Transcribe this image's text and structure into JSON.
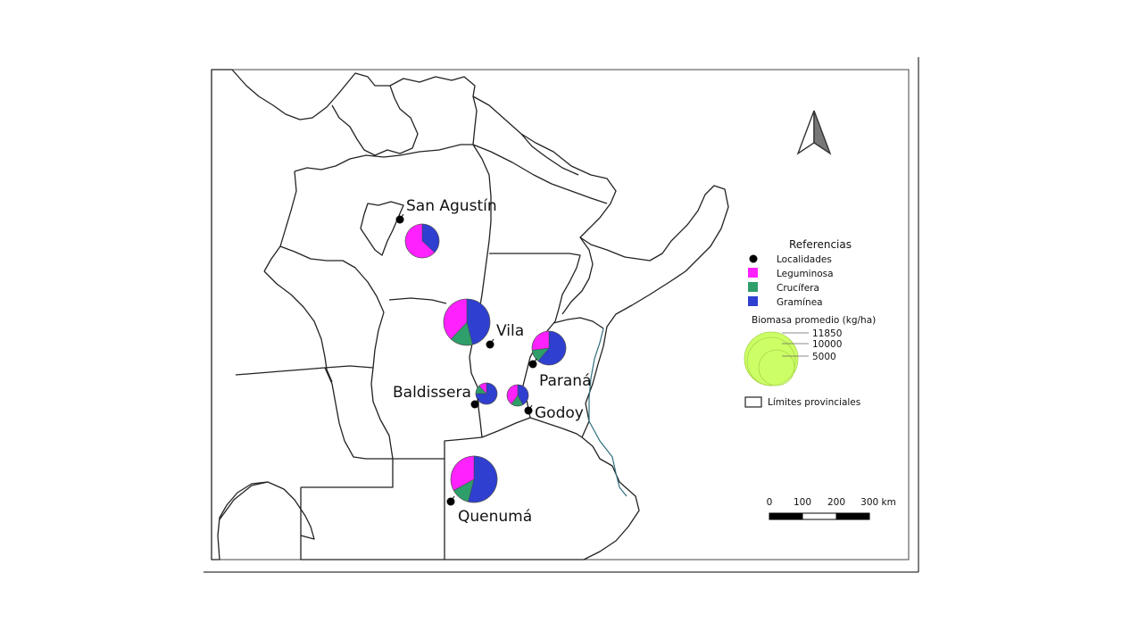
{
  "localities": [
    {
      "name": "San Agustín",
      "values": {
        "leguminosa": 0.63,
        "crucifera": 0.0,
        "graminea": 0.37
      },
      "biomass_rank": 2
    },
    {
      "name": "Vila",
      "values": {
        "leguminosa": 0.38,
        "crucifera": 0.16,
        "graminea": 0.46
      },
      "biomass_rank": 3
    },
    {
      "name": "Paraná",
      "values": {
        "leguminosa": 0.27,
        "crucifera": 0.12,
        "graminea": 0.61
      },
      "biomass_rank": 2
    },
    {
      "name": "Baldissera",
      "values": {
        "leguminosa": 0.12,
        "crucifera": 0.13,
        "graminea": 0.75
      },
      "biomass_rank": 1
    },
    {
      "name": "Godoy",
      "values": {
        "leguminosa": 0.4,
        "crucifera": 0.18,
        "graminea": 0.42
      },
      "biomass_rank": 1
    },
    {
      "name": "Quenumá",
      "values": {
        "leguminosa": 0.33,
        "crucifera": 0.13,
        "graminea": 0.54
      },
      "biomass_rank": 3
    }
  ],
  "legend": {
    "title": "Referencias",
    "items": [
      {
        "label": "Localidades",
        "symbol": "dot",
        "color": "#000000"
      },
      {
        "label": "Leguminosa",
        "symbol": "square",
        "color": "#ff22ff"
      },
      {
        "label": "Crucífera",
        "symbol": "square",
        "color": "#2e9e6a"
      },
      {
        "label": "Gramínea",
        "symbol": "square",
        "color": "#2f3fd0"
      }
    ],
    "biomass_title": "Biomasa promedio (kg/ha)",
    "biomass_values": [
      "11850",
      "10000",
      "5000"
    ],
    "biomass_color": "#ccff66",
    "boundary_label": "Límites provinciales"
  },
  "scale_bar": {
    "ticks": [
      "0",
      "100",
      "200",
      "300 km"
    ]
  },
  "north_arrow": {
    "icon": "north-arrow-icon"
  }
}
